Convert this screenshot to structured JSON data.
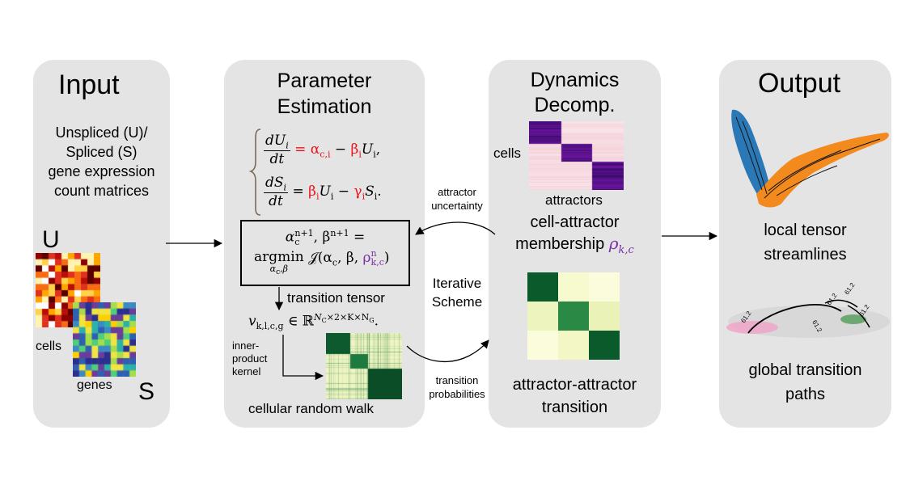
{
  "input": {
    "title": "Input",
    "desc_lines": [
      "Unspliced (U)/",
      "Spliced (S)",
      "gene expression",
      "count matrices"
    ],
    "label_u": "U",
    "label_s": "S",
    "label_cells": "cells",
    "label_genes": "genes"
  },
  "param": {
    "title_line1": "Parameter",
    "title_line2": "Estimation",
    "eq1_lhs_num": "dU",
    "eq1_lhs_sub": "i",
    "eq1_den": "dt",
    "eq1_rhs": "= α",
    "eq1_alpha_sub": "c,i",
    "eq1_minus": " − ",
    "eq1_beta": "β",
    "eq1_beta_sub": "i",
    "eq1_u": "U",
    "eq1_u_sub": "i",
    "eq1_end": ",",
    "eq2_lhs_num": "dS",
    "eq2_lhs_sub": "i",
    "eq2_den": "dt",
    "eq2_eq": "= ",
    "eq2_beta": "β",
    "eq2_beta_sub": "i",
    "eq2_u": "U",
    "eq2_u_sub": "i",
    "eq2_minus": " − ",
    "eq2_gamma": "γ",
    "eq2_gamma_sub": "i",
    "eq2_s": "S",
    "eq2_s_sub": "i",
    "eq2_end": ".",
    "box_line1": "α",
    "box_line1_sub": "c",
    "box_line1_sup": "n+1",
    "box_line1_mid": ", β",
    "box_line1_sup2": "n+1",
    "box_line1_end": " =",
    "box_argmin": "argmin",
    "box_argmin_sub": "α",
    "box_argmin_sub2": "c",
    "box_argmin_sub3": ",β",
    "box_j": "𝒥",
    "box_args": "(α",
    "box_args_sub": "c",
    "box_args_mid": ", β, ",
    "box_rho": "ρ",
    "box_rho_sup": "n",
    "box_rho_sub": "k,c",
    "box_close": ")",
    "transition_tensor": "transition tensor",
    "tensor_v": "v",
    "tensor_sub": "k,l,c,g",
    "tensor_in": " ∈ ℝ",
    "tensor_sup": "N",
    "tensor_sup_c": "C",
    "tensor_sup_mid": "×2×K×N",
    "tensor_sup_g": "G",
    "tensor_end": ".",
    "kernel_lines": [
      "inner-",
      "product",
      "kernel"
    ],
    "random_walk": "cellular random walk"
  },
  "dynamics": {
    "title_line1": "Dynamics",
    "title_line2": "Decomp.",
    "label_cells": "cells",
    "label_attractors": "attractors",
    "membership_line1": "cell-attractor",
    "membership_line2": "membership ",
    "rho": "ρ",
    "rho_sub": "k,c",
    "transition_line1": "attractor-attractor",
    "transition_line2": "transition"
  },
  "middle": {
    "uncertainty_line1": "attractor",
    "uncertainty_line2": "uncertainty",
    "iterative_line1": "Iterative",
    "iterative_line2": "Scheme",
    "probabilities_line1": "transition",
    "probabilities_line2": "probabilities"
  },
  "output": {
    "title": "Output",
    "streamlines_line1": "local tensor",
    "streamlines_line2": "streamlines",
    "paths_line1": "global transition",
    "paths_line2": "paths",
    "path_labels": [
      "61.2",
      "61.2",
      "61.2",
      "61.2",
      "61.2"
    ]
  },
  "colors": {
    "panel": "#e4e4e4",
    "red": "#e8141b",
    "purple": "#7a2fa6",
    "dark_green": "#0b5a2c",
    "light_yellow": "#f4f7c8",
    "mid_green": "#2a8a45",
    "blue_stream": "#2a78b5",
    "orange_stream": "#f28a1e"
  }
}
